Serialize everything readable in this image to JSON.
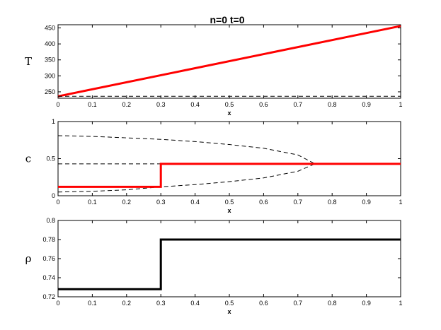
{
  "title": "n=0 t=0",
  "chart_data": [
    {
      "type": "line",
      "ylabel": "T",
      "xlabel": "x",
      "xlim": [
        0,
        1
      ],
      "ylim": [
        230,
        460
      ],
      "xticks": [
        "0",
        "0.1",
        "0.2",
        "0.3",
        "0.4",
        "0.5",
        "0.6",
        "0.7",
        "0.8",
        "0.9",
        "1"
      ],
      "yticks": [
        "250",
        "300",
        "350",
        "400",
        "450"
      ],
      "grid": false,
      "series": [
        {
          "color": "#ff0000",
          "style": "solid",
          "points": [
            [
              0,
              236
            ],
            [
              1,
              456
            ]
          ]
        },
        {
          "color": "#000000",
          "style": "dashed",
          "points": [
            [
              0,
              236
            ],
            [
              1,
              236
            ]
          ]
        }
      ]
    },
    {
      "type": "line",
      "ylabel": "c",
      "xlabel": "x",
      "xlim": [
        0,
        1
      ],
      "ylim": [
        0,
        1
      ],
      "xticks": [
        "0",
        "0.1",
        "0.2",
        "0.3",
        "0.4",
        "0.5",
        "0.6",
        "0.7",
        "0.8",
        "0.9",
        "1"
      ],
      "yticks": [
        "0",
        "0.5",
        "1"
      ],
      "grid": false,
      "series": [
        {
          "color": "#000000",
          "style": "dashed",
          "points": [
            [
              0,
              0.81
            ],
            [
              0.1,
              0.8
            ],
            [
              0.2,
              0.78
            ],
            [
              0.3,
              0.76
            ],
            [
              0.4,
              0.73
            ],
            [
              0.5,
              0.69
            ],
            [
              0.6,
              0.64
            ],
            [
              0.7,
              0.55
            ],
            [
              0.75,
              0.43
            ]
          ]
        },
        {
          "color": "#000000",
          "style": "dashed",
          "points": [
            [
              0,
              0.05
            ],
            [
              0.1,
              0.06
            ],
            [
              0.2,
              0.08
            ],
            [
              0.3,
              0.12
            ],
            [
              0.4,
              0.15
            ],
            [
              0.5,
              0.19
            ],
            [
              0.6,
              0.24
            ],
            [
              0.7,
              0.33
            ],
            [
              0.75,
              0.43
            ]
          ]
        },
        {
          "color": "#000000",
          "style": "dashed",
          "points": [
            [
              0,
              0.43
            ],
            [
              1,
              0.43
            ]
          ]
        },
        {
          "color": "#ff0000",
          "style": "solid",
          "points": [
            [
              0,
              0.12
            ],
            [
              0.3,
              0.12
            ],
            [
              0.3,
              0.43
            ],
            [
              1,
              0.43
            ]
          ]
        }
      ]
    },
    {
      "type": "line",
      "ylabel": "ρ",
      "xlabel": "x",
      "xlim": [
        0,
        1
      ],
      "ylim": [
        0.72,
        0.8
      ],
      "xticks": [
        "0",
        "0.1",
        "0.2",
        "0.3",
        "0.4",
        "0.5",
        "0.6",
        "0.7",
        "0.8",
        "0.9",
        "1"
      ],
      "yticks": [
        "0.72",
        "0.74",
        "0.76",
        "0.78",
        "0.8"
      ],
      "grid": false,
      "series": [
        {
          "color": "#000000",
          "style": "solid",
          "points": [
            [
              0,
              0.728
            ],
            [
              0.3,
              0.728
            ],
            [
              0.3,
              0.78
            ],
            [
              1,
              0.78
            ]
          ]
        }
      ]
    }
  ]
}
